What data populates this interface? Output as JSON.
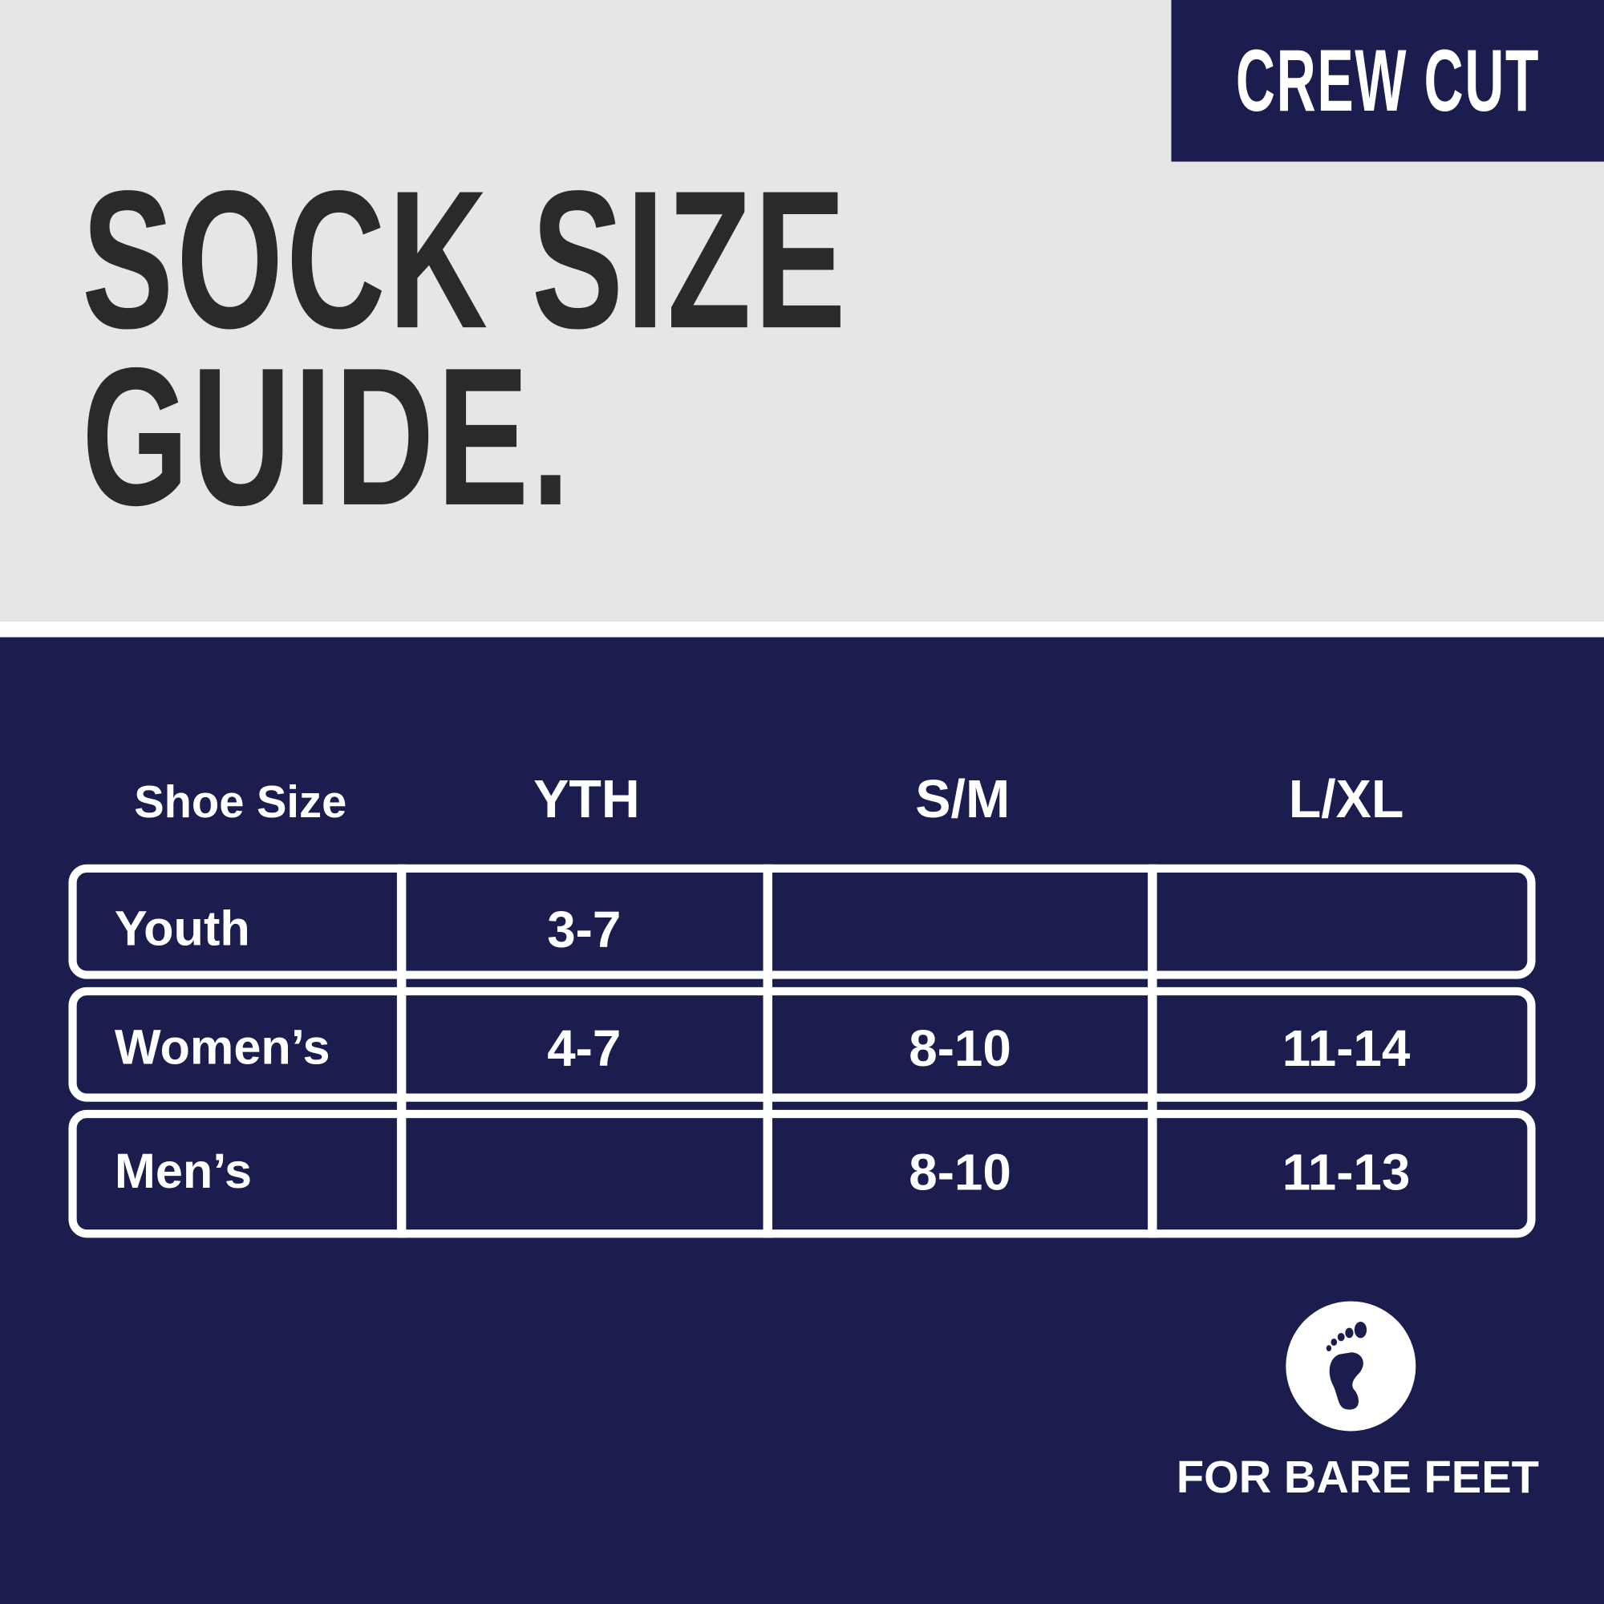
{
  "badge": "CREW CUT",
  "title": {
    "line1": "SOCK SIZE",
    "line2": "GUIDE."
  },
  "table": {
    "corner_label": "Shoe Size",
    "columns": [
      "YTH",
      "S/M",
      "L/XL"
    ],
    "rows": [
      {
        "label": "Youth",
        "values": [
          "3-7",
          "",
          ""
        ]
      },
      {
        "label": "Women’s",
        "values": [
          "4-7",
          "8-10",
          "11-14"
        ]
      },
      {
        "label": "Men’s",
        "values": [
          "",
          "8-10",
          "11-13"
        ]
      }
    ]
  },
  "footer": {
    "icon": "bare-foot-icon",
    "label": "FOR BARE FEET"
  },
  "colors": {
    "navy": "#1b1d4f",
    "light_gray": "#e6e6e4",
    "dark_text": "#2a2a2a",
    "white": "#ffffff"
  }
}
